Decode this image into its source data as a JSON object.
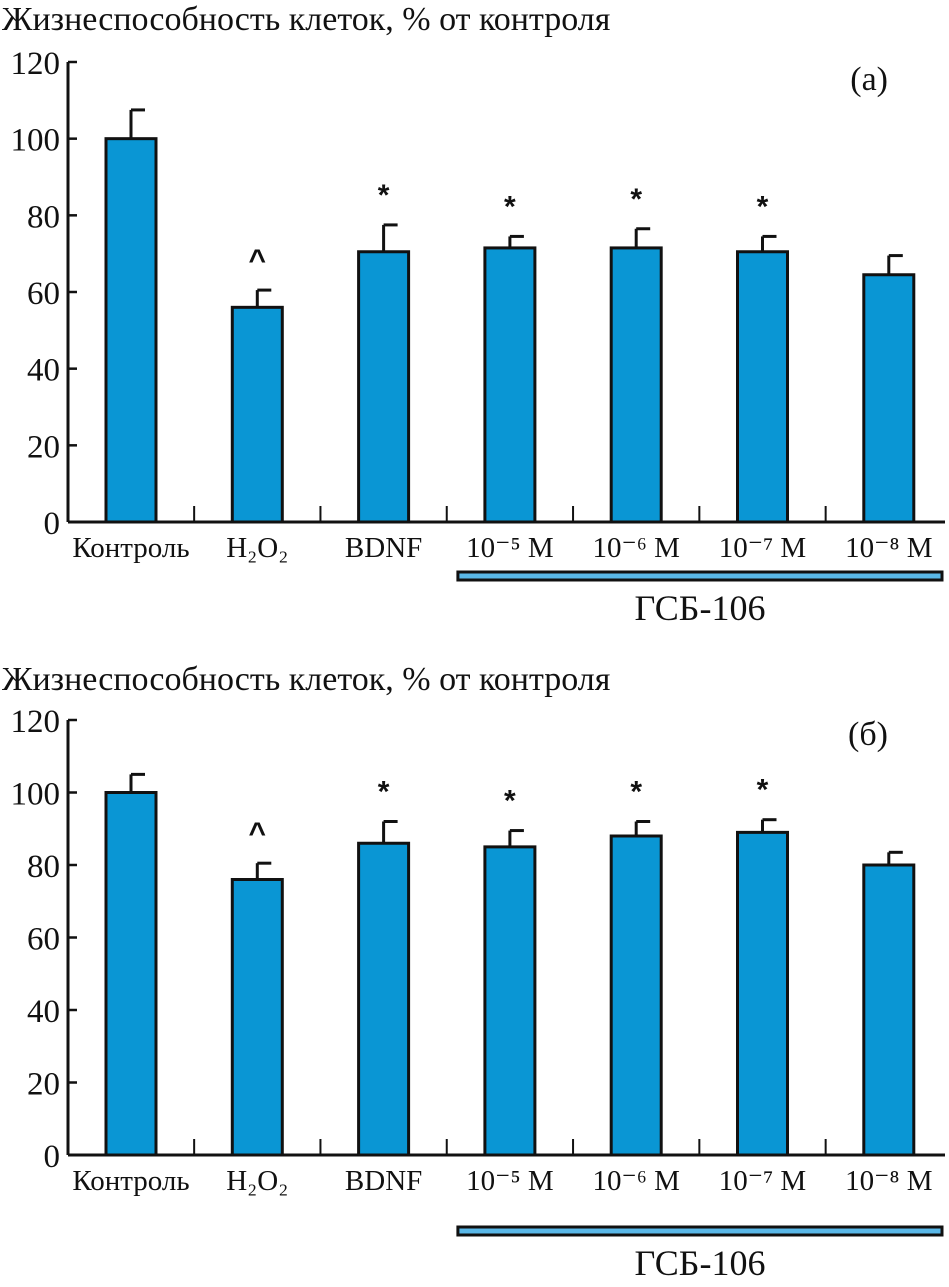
{
  "chart_data": [
    {
      "type": "bar",
      "panel_label": "(а)",
      "ylabel": "Жизнеспособность клеток, % от контроля",
      "ylim": [
        0,
        120
      ],
      "yticks": [
        "0",
        "20",
        "40",
        "60",
        "80",
        "100",
        "120"
      ],
      "categories": [
        "Контроль",
        "H₂O₂",
        "BDNF",
        "10⁻⁵ M",
        "10⁻⁶ M",
        "10⁻⁷ M",
        "10⁻⁸ M"
      ],
      "values": [
        100,
        56,
        70.5,
        71.5,
        71.5,
        70.5,
        64.5
      ],
      "errors": [
        7.5,
        4.5,
        7,
        3,
        5,
        4,
        5
      ],
      "annotations": [
        "",
        "^",
        "*",
        "*",
        "*",
        "*",
        ""
      ],
      "group_label": "ГСБ-106",
      "group_span": [
        3,
        6
      ],
      "bar_color": "#0a96d4"
    },
    {
      "type": "bar",
      "panel_label": "(б)",
      "ylabel": "Жизнеспособность клеток, % от контроля",
      "ylim": [
        0,
        120
      ],
      "yticks": [
        "0",
        "20",
        "40",
        "60",
        "80",
        "100",
        "120"
      ],
      "categories": [
        "Контроль",
        "H₂O₂",
        "BDNF",
        "10⁻⁵ M",
        "10⁻⁶ M",
        "10⁻⁷ M",
        "10⁻⁸ M"
      ],
      "values": [
        100,
        76,
        86,
        85,
        88,
        89,
        80
      ],
      "errors": [
        5,
        4.5,
        6,
        4.5,
        4,
        3.5,
        3.5
      ],
      "annotations": [
        "",
        "^",
        "*",
        "*",
        "*",
        "*",
        ""
      ],
      "group_label": "ГСБ-106",
      "group_span": [
        3,
        6
      ],
      "bar_color": "#0a96d4"
    }
  ]
}
